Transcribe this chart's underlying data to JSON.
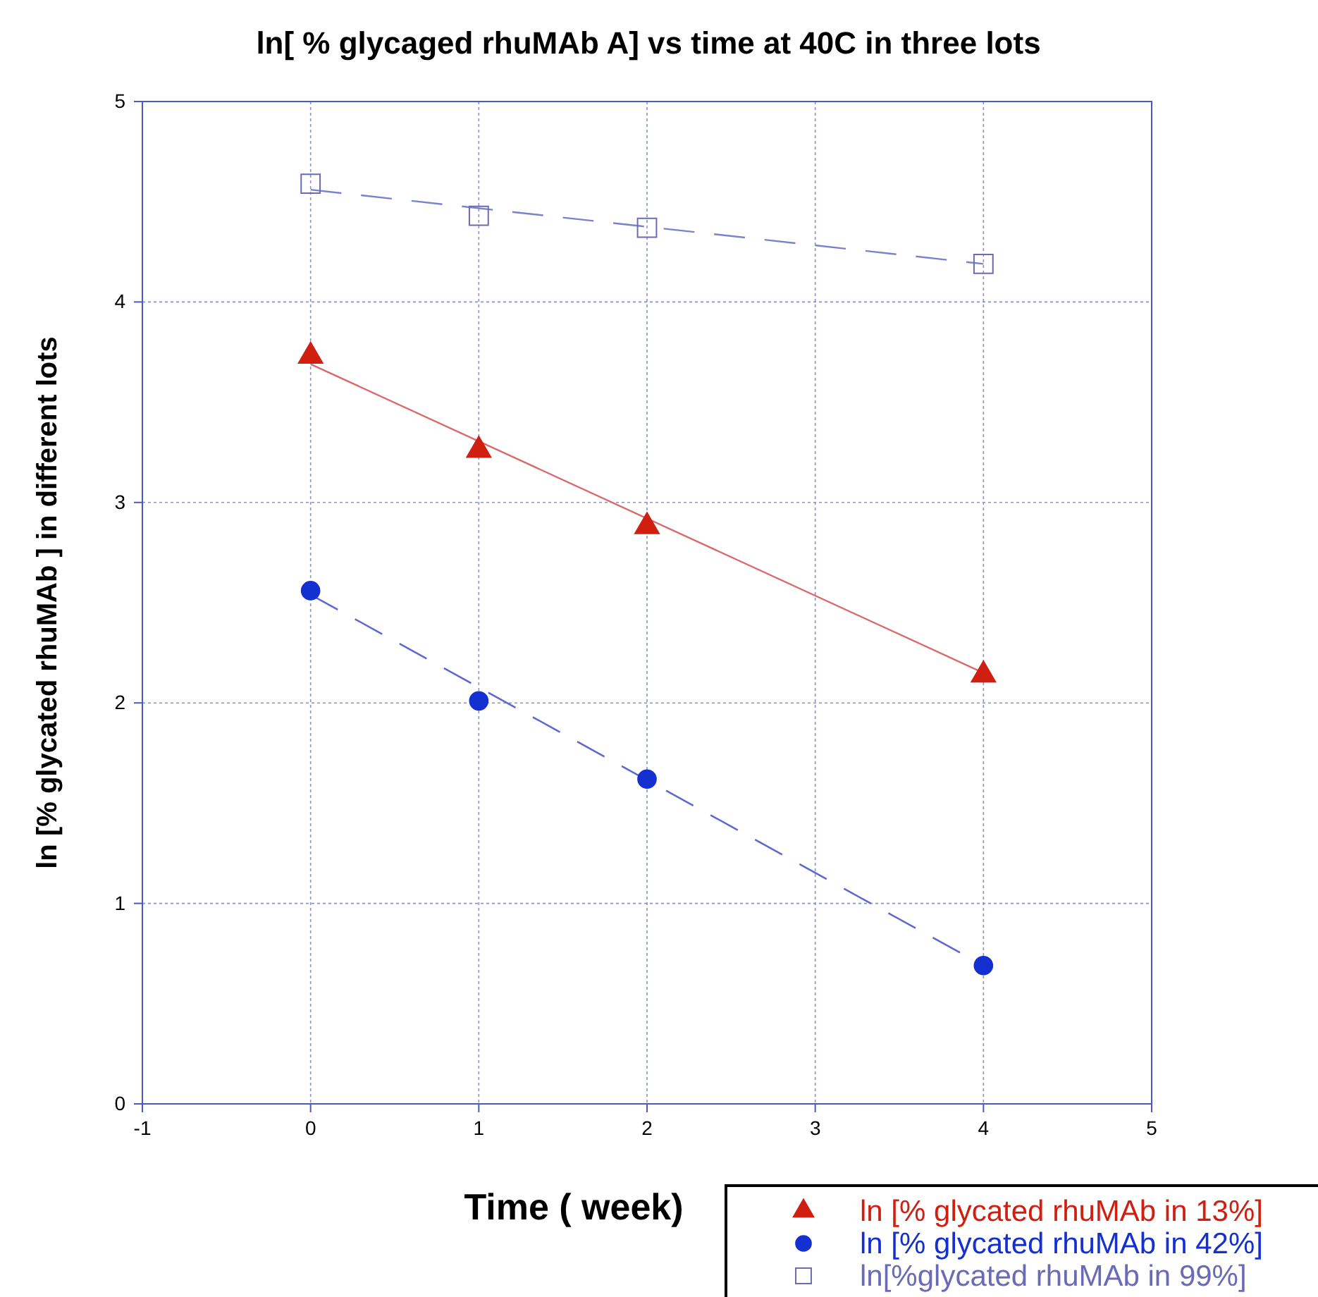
{
  "chart_data": {
    "type": "scatter",
    "title": "ln[ % glycaged rhuMAb A] vs time at 40C in three lots",
    "xlabel": "Time ( week)",
    "ylabel": "ln [% glycated rhuMAb ] in different lots",
    "xlim": [
      -1,
      5
    ],
    "xticks": [
      -1,
      0,
      1,
      2,
      3,
      4,
      5
    ],
    "ylim": [
      0,
      5
    ],
    "yticks": [
      0,
      1,
      2,
      3,
      4,
      5
    ],
    "grid": true,
    "legend": "bottom right",
    "series": [
      {
        "type": "line",
        "color": "#d86a6a",
        "line_style": "solid",
        "marker": "none",
        "x": [
          0,
          4
        ],
        "values": [
          3.69,
          2.15
        ]
      },
      {
        "type": "line",
        "color": "#5a68d0",
        "line_style": "dashed",
        "marker": "none",
        "x": [
          0,
          4
        ],
        "values": [
          2.54,
          0.69
        ]
      },
      {
        "type": "line",
        "color": "#7a82cc",
        "line_style": "dashed",
        "marker": "none",
        "x": [
          0,
          4
        ],
        "values": [
          4.56,
          4.19
        ]
      },
      {
        "name": "ln [% glycated rhuMAb in 13%]",
        "color": "#d01e10",
        "marker": "triangle",
        "x": [
          0,
          1,
          2,
          4
        ],
        "values": [
          3.73,
          3.26,
          2.88,
          2.14
        ]
      },
      {
        "name": "ln [% glycated rhuMAb in 42%]",
        "color": "#1530d0",
        "marker": "circle",
        "x": [
          0,
          1,
          2,
          4
        ],
        "values": [
          2.56,
          2.01,
          1.62,
          0.69
        ]
      },
      {
        "name": "ln[%glycated rhuMAb in 99%]",
        "color": "#6a6ab8",
        "marker": "square",
        "x": [
          0,
          1,
          2,
          4
        ],
        "values": [
          4.59,
          4.43,
          4.37,
          4.19
        ]
      }
    ]
  }
}
